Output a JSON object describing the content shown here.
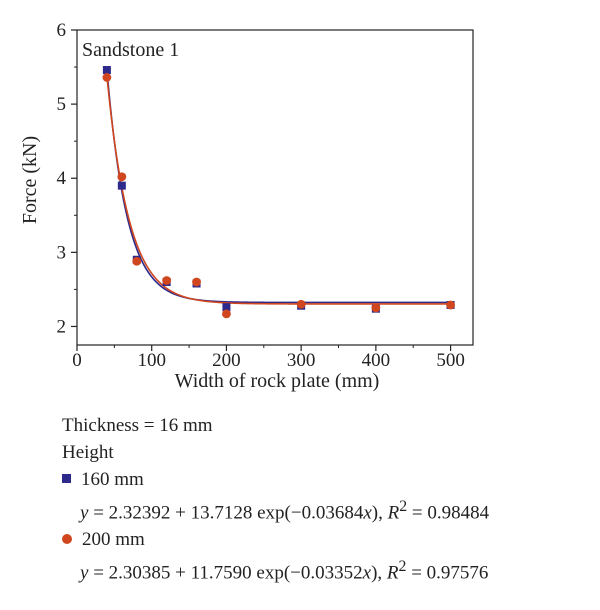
{
  "colors": {
    "series160": "#2e2a8c",
    "series200": "#d0461e",
    "axis": "#222222"
  },
  "chart_data": {
    "type": "scatter",
    "title": "",
    "annotation": "Sandstone 1",
    "xlabel": "Width of rock plate (mm)",
    "ylabel": "Force (kN)",
    "xlim": [
      0,
      530
    ],
    "ylim": [
      1.75,
      6
    ],
    "xticks": [
      0,
      100,
      200,
      300,
      400,
      500
    ],
    "yticks": [
      2,
      3,
      4,
      5,
      6
    ],
    "grid": false,
    "series": [
      {
        "name": "160 mm",
        "marker": "square",
        "points": [
          [
            40,
            5.46
          ],
          [
            60,
            3.9
          ],
          [
            80,
            2.9
          ],
          [
            120,
            2.6
          ],
          [
            160,
            2.58
          ],
          [
            200,
            2.26
          ],
          [
            300,
            2.28
          ],
          [
            400,
            2.24
          ],
          [
            500,
            2.29
          ]
        ],
        "fit": {
          "a": 2.32392,
          "b": 13.7128,
          "k": -0.03684
        }
      },
      {
        "name": "200 mm",
        "marker": "circle",
        "points": [
          [
            40,
            5.36
          ],
          [
            60,
            4.02
          ],
          [
            80,
            2.88
          ],
          [
            120,
            2.62
          ],
          [
            160,
            2.6
          ],
          [
            200,
            2.17
          ],
          [
            300,
            2.3
          ],
          [
            400,
            2.25
          ],
          [
            500,
            2.29
          ]
        ],
        "fit": {
          "a": 2.30385,
          "b": 11.759,
          "k": -0.03352
        }
      }
    ]
  },
  "legend": {
    "thickness": "Thickness = 16 mm",
    "height_label": "Height",
    "items": [
      {
        "label": "160 mm",
        "eq_prefix": "y",
        "eq_body": " = 2.32392 + 13.7128 exp(−0.03684",
        "eq_x": "x",
        "eq_close": "), ",
        "eq_r": "R",
        "eq_r_sup": "2",
        "eq_r_val": " = 0.98484"
      },
      {
        "label": "200 mm",
        "eq_prefix": "y",
        "eq_body": " = 2.30385 + 11.7590 exp(−0.03352",
        "eq_x": "x",
        "eq_close": "), ",
        "eq_r": "R",
        "eq_r_sup": "2",
        "eq_r_val": " = 0.97576"
      }
    ]
  }
}
